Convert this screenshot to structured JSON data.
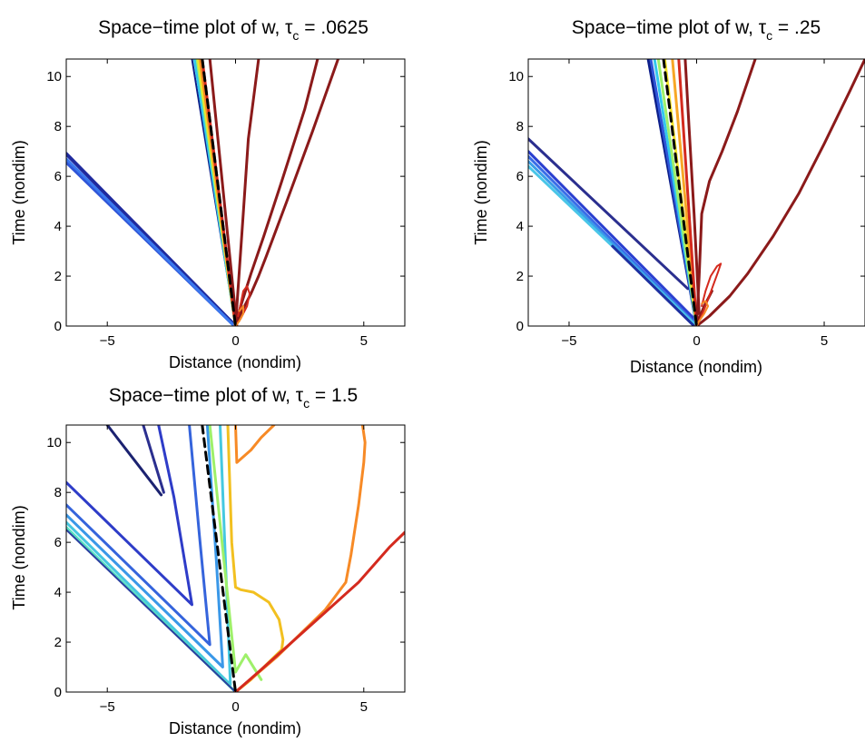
{
  "chart_data": [
    {
      "type": "line",
      "title_main": "Space−time plot of w, τ",
      "title_sub": "c",
      "title_value": " = .0625",
      "xlabel": "Distance (nondim)",
      "ylabel": "Time (nondim)",
      "xlim": [
        -6.6,
        6.6
      ],
      "ylim": [
        0,
        10.7
      ],
      "xticks": [
        -5,
        0,
        5
      ],
      "yticks": [
        0,
        2,
        4,
        6,
        8,
        10
      ],
      "xtick_labels": [
        "−5",
        "0",
        "5"
      ],
      "ytick_labels": [
        "0",
        "2",
        "4",
        "6",
        "8",
        "10"
      ],
      "series": [
        {
          "color": "#1f2a9e",
          "width": 4,
          "x": [
            -6.6,
            0.0
          ],
          "y": [
            6.9,
            0.0
          ]
        },
        {
          "color": "#2f55d8",
          "width": 3,
          "x": [
            -6.6,
            -0.05
          ],
          "y": [
            6.55,
            0.0
          ]
        },
        {
          "color": "#3a78ee",
          "width": 3,
          "x": [
            -6.6,
            -0.1
          ],
          "y": [
            6.7,
            0.05
          ]
        },
        {
          "color": "#0d1f8a",
          "width": 2,
          "x": [
            -1.7,
            0.0
          ],
          "y": [
            10.7,
            0.0
          ]
        },
        {
          "color": "#33c7ee",
          "width": 3,
          "x": [
            -1.6,
            0.0
          ],
          "y": [
            10.7,
            0.0
          ]
        },
        {
          "color": "#9ef06a",
          "width": 3,
          "x": [
            -1.5,
            0.0
          ],
          "y": [
            10.7,
            0.0
          ]
        },
        {
          "color": "#f2e22a",
          "width": 3,
          "x": [
            -1.45,
            0.0
          ],
          "y": [
            10.7,
            0.0
          ]
        },
        {
          "color": "#f78a26",
          "width": 3,
          "x": [
            -1.38,
            0.0
          ],
          "y": [
            10.7,
            0.0
          ]
        },
        {
          "color": "#d42a1e",
          "width": 3,
          "x": [
            -1.3,
            0.0
          ],
          "y": [
            10.7,
            0.0
          ]
        },
        {
          "color": "#8b1a1a",
          "width": 3,
          "x": [
            -1.0,
            0.05
          ],
          "y": [
            10.7,
            0.0
          ]
        },
        {
          "color": "#8b1a1a",
          "width": 3,
          "x": [
            0.0,
            0.25,
            0.6,
            0.9,
            1.2,
            2.0,
            3.0,
            4.0
          ],
          "y": [
            0.0,
            0.6,
            1.3,
            2.0,
            2.8,
            5.0,
            7.8,
            10.7
          ]
        },
        {
          "color": "#8b1a1a",
          "width": 3,
          "x": [
            0.0,
            0.2,
            0.6,
            1.1,
            1.8,
            2.7,
            3.2
          ],
          "y": [
            0.0,
            0.8,
            2.1,
            3.6,
            5.8,
            8.7,
            10.7
          ]
        },
        {
          "color": "#8b1a1a",
          "width": 3,
          "x": [
            0.0,
            0.1,
            0.3,
            0.5,
            0.9
          ],
          "y": [
            0.0,
            1.5,
            4.5,
            7.5,
            10.7
          ]
        },
        {
          "color": "#d42a1e",
          "width": 2,
          "x": [
            0.0,
            0.2,
            0.45,
            0.55,
            0.45,
            0.3,
            0.2,
            0.1
          ],
          "y": [
            0.0,
            0.3,
            0.8,
            1.3,
            1.6,
            1.4,
            0.9,
            0.4
          ]
        },
        {
          "color": "#f78a26",
          "width": 2,
          "x": [
            0.0,
            0.15,
            0.3,
            0.3,
            0.15
          ],
          "y": [
            0.0,
            0.2,
            0.5,
            0.8,
            0.6
          ]
        },
        {
          "color": "#000000",
          "width": 3,
          "dash": true,
          "x": [
            -1.3,
            0.0
          ],
          "y": [
            10.7,
            0.0
          ]
        }
      ]
    },
    {
      "type": "line",
      "title_main": "Space−time plot of w, τ",
      "title_sub": "c",
      "title_value": " = .25",
      "xlabel": "Distance (nondim)",
      "ylabel": "Time (nondim)",
      "xlim": [
        -6.6,
        6.6
      ],
      "ylim": [
        0,
        10.7
      ],
      "xticks": [
        -5,
        0,
        5
      ],
      "yticks": [
        0,
        2,
        4,
        6,
        8,
        10
      ],
      "xtick_labels": [
        "−5",
        "0",
        "5"
      ],
      "ytick_labels": [
        "0",
        "2",
        "4",
        "6",
        "8",
        "10"
      ],
      "series": [
        {
          "color": "#2b2f8f",
          "width": 3,
          "x": [
            -6.6,
            -0.35
          ],
          "y": [
            7.5,
            1.5
          ]
        },
        {
          "color": "#2a3fd0",
          "width": 3,
          "x": [
            -6.6,
            -0.1
          ],
          "y": [
            7.0,
            0.3
          ]
        },
        {
          "color": "#3a6ee8",
          "width": 3,
          "x": [
            -6.6,
            0.0
          ],
          "y": [
            6.8,
            0.05
          ]
        },
        {
          "color": "#3a9ce8",
          "width": 3,
          "x": [
            -6.6,
            0.0
          ],
          "y": [
            6.6,
            0.0
          ]
        },
        {
          "color": "#49c6e8",
          "width": 3,
          "x": [
            -6.6,
            0.0
          ],
          "y": [
            6.4,
            0.0
          ]
        },
        {
          "color": "#1d2fa0",
          "width": 3,
          "x": [
            -3.3,
            -0.1
          ],
          "y": [
            3.2,
            0.0
          ]
        },
        {
          "color": "#0d1f8a",
          "width": 3,
          "x": [
            -1.9,
            0.0
          ],
          "y": [
            10.7,
            0.0
          ]
        },
        {
          "color": "#2f55d8",
          "width": 3,
          "x": [
            -1.8,
            0.0
          ],
          "y": [
            10.7,
            0.0
          ]
        },
        {
          "color": "#33c7ee",
          "width": 3,
          "x": [
            -1.65,
            0.0
          ],
          "y": [
            10.7,
            0.0
          ]
        },
        {
          "color": "#9ef06a",
          "width": 3,
          "x": [
            -1.5,
            0.0
          ],
          "y": [
            10.7,
            0.0
          ]
        },
        {
          "color": "#f2e22a",
          "width": 3,
          "x": [
            -1.25,
            0.0
          ],
          "y": [
            10.7,
            0.0
          ]
        },
        {
          "color": "#f7a726",
          "width": 3,
          "x": [
            -0.95,
            0.0
          ],
          "y": [
            10.7,
            0.0
          ]
        },
        {
          "color": "#d42a1e",
          "width": 3,
          "x": [
            -0.7,
            0.0
          ],
          "y": [
            10.7,
            0.0
          ]
        },
        {
          "color": "#8b1a1a",
          "width": 3,
          "x": [
            -0.45,
            -0.3,
            -0.1,
            0.1
          ],
          "y": [
            10.7,
            8.0,
            4.5,
            0.5
          ]
        },
        {
          "color": "#8b1a1a",
          "width": 3,
          "x": [
            0.0,
            0.1,
            0.3,
            0.6
          ],
          "y": [
            0.0,
            0.3,
            0.8,
            1.4
          ]
        },
        {
          "color": "#8b1a1a",
          "width": 3,
          "x": [
            0.0,
            0.5,
            1.3,
            2.0,
            3.0,
            4.0,
            5.0,
            6.0,
            6.6
          ],
          "y": [
            0.0,
            0.4,
            1.2,
            2.1,
            3.6,
            5.3,
            7.3,
            9.4,
            10.7
          ]
        },
        {
          "color": "#8b1a1a",
          "width": 3,
          "x": [
            0.0,
            0.1,
            0.2,
            0.5,
            1.0,
            1.6,
            2.3
          ],
          "y": [
            0.0,
            2.0,
            4.5,
            5.8,
            7.0,
            8.6,
            10.7
          ]
        },
        {
          "color": "#d42a1e",
          "width": 2,
          "x": [
            0.0,
            0.15,
            0.35,
            0.6,
            0.85,
            0.95,
            0.8,
            0.55,
            0.35,
            0.2
          ],
          "y": [
            0.0,
            0.3,
            0.8,
            1.5,
            2.2,
            2.5,
            2.4,
            2.0,
            1.4,
            0.8
          ]
        },
        {
          "color": "#f78a26",
          "width": 2,
          "x": [
            0.0,
            0.1,
            0.3,
            0.45,
            0.35,
            0.2
          ],
          "y": [
            0.0,
            0.2,
            0.5,
            0.8,
            1.0,
            0.9
          ]
        },
        {
          "color": "#000000",
          "width": 3,
          "dash": true,
          "x": [
            -1.3,
            0.0
          ],
          "y": [
            10.7,
            0.0
          ]
        }
      ]
    },
    {
      "type": "line",
      "title_main": "Space−time plot of w, τ",
      "title_sub": "c",
      "title_value": " = 1.5",
      "xlabel": "Distance (nondim)",
      "ylabel": "Time (nondim)",
      "xlim": [
        -6.6,
        6.6
      ],
      "ylim": [
        0,
        10.7
      ],
      "xticks": [
        -5,
        0,
        5
      ],
      "yticks": [
        0,
        2,
        4,
        6,
        8,
        10
      ],
      "xtick_labels": [
        "−5",
        "0",
        "5"
      ],
      "ytick_labels": [
        "0",
        "2",
        "4",
        "6",
        "8",
        "10"
      ],
      "series": [
        {
          "color": "#1b2270",
          "width": 3,
          "x": [
            -5.0,
            -2.9
          ],
          "y": [
            10.7,
            7.9
          ]
        },
        {
          "color": "#2b2f8f",
          "width": 3,
          "x": [
            -3.6,
            -2.8
          ],
          "y": [
            10.7,
            8.0
          ]
        },
        {
          "color": "#2e3cc8",
          "width": 3,
          "x": [
            -6.6,
            -1.7,
            -2.4,
            -3.0
          ],
          "y": [
            8.4,
            3.5,
            7.8,
            10.7
          ]
        },
        {
          "color": "#3564dc",
          "width": 3,
          "x": [
            -6.6,
            -1.0,
            -1.4,
            -1.8
          ],
          "y": [
            7.5,
            1.9,
            6.2,
            10.7
          ]
        },
        {
          "color": "#3a98e8",
          "width": 3,
          "x": [
            -6.6,
            -0.5,
            -0.75,
            -1.1
          ],
          "y": [
            7.1,
            1.0,
            5.3,
            10.7
          ]
        },
        {
          "color": "#45c8e0",
          "width": 3,
          "x": [
            -6.6,
            -0.2,
            -0.6
          ],
          "y": [
            6.8,
            0.3,
            10.7
          ]
        },
        {
          "color": "#58e0c0",
          "width": 3,
          "x": [
            -6.6,
            -0.05
          ],
          "y": [
            6.6,
            0.05
          ]
        },
        {
          "color": "#2a3fa0",
          "width": 2,
          "x": [
            -6.6,
            0.0
          ],
          "y": [
            6.5,
            0.0
          ]
        },
        {
          "color": "#9ef06a",
          "width": 3,
          "x": [
            -1.0,
            0.0,
            0.4,
            1.0
          ],
          "y": [
            10.7,
            0.8,
            1.5,
            0.5
          ]
        },
        {
          "color": "#f2c020",
          "width": 3,
          "x": [
            -0.3,
            -0.15,
            0.0,
            0.2,
            0.7,
            1.3,
            1.7,
            1.85,
            1.8
          ],
          "y": [
            10.7,
            6.0,
            4.2,
            4.1,
            4.0,
            3.6,
            2.9,
            2.1,
            1.7
          ]
        },
        {
          "color": "#f2c020",
          "width": 3,
          "x": [
            0.0,
            0.6,
            1.2,
            1.8
          ],
          "y": [
            0.0,
            0.5,
            1.1,
            1.7
          ]
        },
        {
          "color": "#f78a26",
          "width": 3,
          "x": [
            0.0,
            0.8,
            1.6,
            2.5,
            3.5,
            4.3,
            4.5,
            4.8,
            5.0,
            5.05,
            4.95
          ],
          "y": [
            0.0,
            0.7,
            1.4,
            2.3,
            3.3,
            4.4,
            5.5,
            7.5,
            9.2,
            10.0,
            10.7
          ]
        },
        {
          "color": "#f78a26",
          "width": 3,
          "x": [
            0.0,
            0.05,
            0.6,
            1.0,
            1.5
          ],
          "y": [
            10.7,
            9.2,
            9.7,
            10.2,
            10.7
          ]
        },
        {
          "color": "#d42a1e",
          "width": 3,
          "x": [
            0.0,
            1.0,
            2.2,
            3.5,
            4.8,
            6.0,
            6.6
          ],
          "y": [
            0.0,
            0.9,
            2.0,
            3.2,
            4.4,
            5.8,
            6.4
          ]
        },
        {
          "color": "#000000",
          "width": 3,
          "dash": true,
          "x": [
            -1.3,
            0.0
          ],
          "y": [
            10.7,
            0.0
          ]
        }
      ]
    }
  ]
}
